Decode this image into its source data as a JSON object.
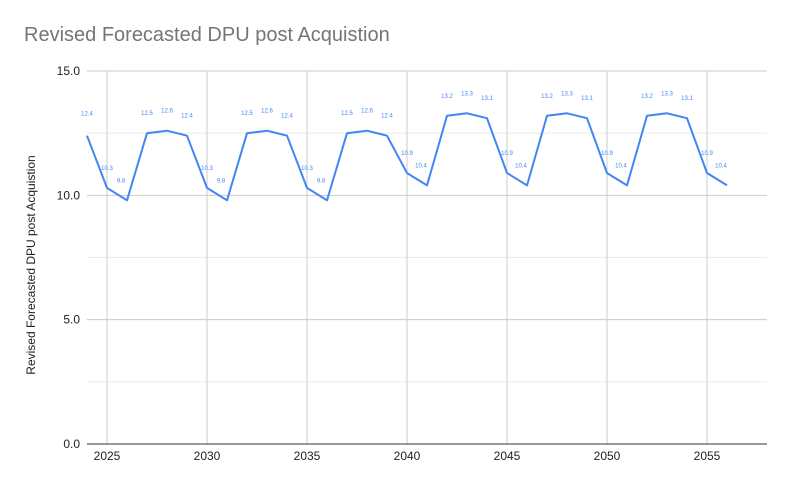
{
  "chart_data": {
    "type": "line",
    "title": "Revised Forecasted DPU post Acquistion",
    "xlabel": "",
    "ylabel": "Revised Forecasted DPU post Acquistion",
    "xlim": [
      2024,
      2058
    ],
    "ylim": [
      0,
      15
    ],
    "y_ticks": [
      "0.0",
      "5.0",
      "10.0",
      "15.0"
    ],
    "x_ticks": [
      "2025",
      "2030",
      "2035",
      "2040",
      "2045",
      "2050",
      "2055"
    ],
    "grid": true,
    "legend": "none",
    "x": [
      2024,
      2025,
      2026,
      2027,
      2028,
      2029,
      2030,
      2031,
      2032,
      2033,
      2034,
      2035,
      2036,
      2037,
      2038,
      2039,
      2040,
      2041,
      2042,
      2043,
      2044,
      2045,
      2046,
      2047,
      2048,
      2049,
      2050,
      2051,
      2052,
      2053,
      2054,
      2055,
      2056
    ],
    "series": [
      {
        "values": [
          12.4,
          10.3,
          9.8,
          12.5,
          12.6,
          12.4,
          10.3,
          9.8,
          12.5,
          12.6,
          12.4,
          10.3,
          9.8,
          12.5,
          12.6,
          12.4,
          10.9,
          10.4,
          13.2,
          13.3,
          13.1,
          10.9,
          10.4,
          13.2,
          13.3,
          13.1,
          10.9,
          10.4,
          13.2,
          13.3,
          13.1,
          10.9,
          10.4
        ],
        "labels": [
          "12.4",
          "10.3",
          "9.8",
          "12.5",
          "12.6",
          "12.4",
          "10.3",
          "9.8",
          "12.5",
          "12.6",
          "12.4",
          "10.3",
          "9.8",
          "12.5",
          "12.6",
          "12.4",
          "10.9",
          "10.4",
          "13.2",
          "13.3",
          "13.1",
          "10.9",
          "10.4",
          "13.2",
          "13.3",
          "13.1",
          "10.9",
          "10.4",
          "13.2",
          "13.3",
          "13.1",
          "10.9",
          "10.4"
        ]
      }
    ],
    "colors": {
      "line": "#4285f4",
      "grid": "#cccccc",
      "axis": "#333333",
      "title": "#757575",
      "label": "#4285f4"
    }
  }
}
